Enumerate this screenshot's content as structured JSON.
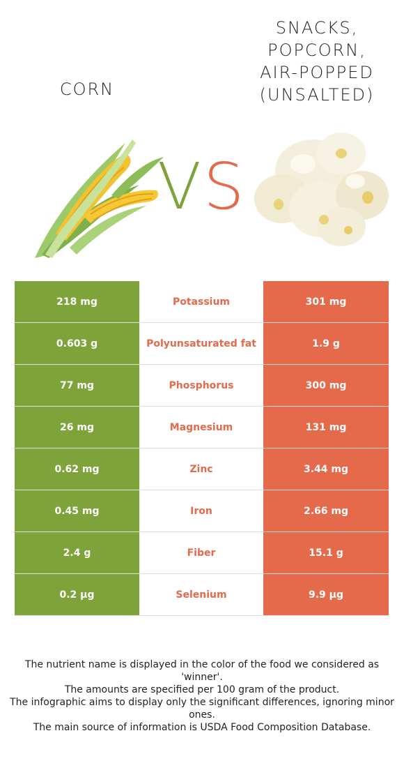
{
  "left_food": {
    "name": "CORN",
    "color": "#7ea33a"
  },
  "right_food": {
    "name": "SNACKS,\nPOPCORN,\nAIR-POPPED\n(UNSALTED)",
    "color": "#e5694b"
  },
  "vs": {
    "v": "V",
    "s": "S"
  },
  "nutrients": [
    {
      "left": "218 mg",
      "name": "Potassium",
      "right": "301 mg",
      "winner": "right"
    },
    {
      "left": "0.603 g",
      "name": "Polyunsaturated fat",
      "right": "1.9 g",
      "winner": "right"
    },
    {
      "left": "77 mg",
      "name": "Phosphorus",
      "right": "300 mg",
      "winner": "right"
    },
    {
      "left": "26 mg",
      "name": "Magnesium",
      "right": "131 mg",
      "winner": "right"
    },
    {
      "left": "0.62 mg",
      "name": "Zinc",
      "right": "3.44 mg",
      "winner": "right"
    },
    {
      "left": "0.45 mg",
      "name": "Iron",
      "right": "2.66 mg",
      "winner": "right"
    },
    {
      "left": "2.4 g",
      "name": "Fiber",
      "right": "15.1 g",
      "winner": "right"
    },
    {
      "left": "0.2 µg",
      "name": "Selenium",
      "right": "9.9 µg",
      "winner": "right"
    }
  ],
  "footnote": [
    "The nutrient name is displayed in the color of the food we considered as 'winner'.",
    "The amounts are specified per 100 gram of the product.",
    "The infographic aims to display only the significant differences, ignoring minor ones.",
    "The main source of information is USDA Food Composition Database."
  ],
  "images": {
    "left": "corn-image",
    "right": "popcorn-image"
  }
}
